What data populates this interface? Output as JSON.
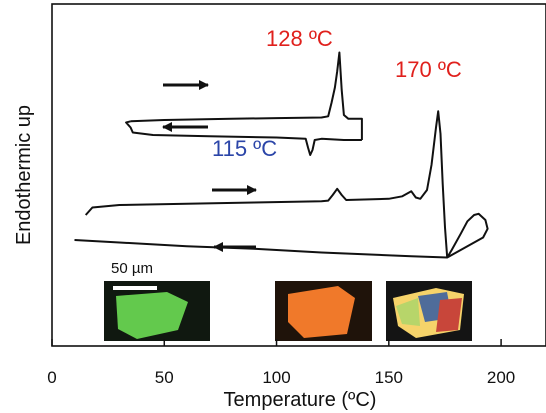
{
  "chart_data": {
    "type": "line",
    "xlabel": "Temperature (ºC)",
    "ylabel": "Endothermic up",
    "xlim": [
      0,
      220
    ],
    "x_ticks": [
      0,
      50,
      100,
      150,
      200
    ],
    "grid": false,
    "legend": "none",
    "series": [
      {
        "role": "upper heating",
        "direction": "right",
        "color": "#111111",
        "points": [
          [
            35,
            95
          ],
          [
            50,
            96
          ],
          [
            80,
            97
          ],
          [
            100,
            97.5
          ],
          [
            120,
            98
          ],
          [
            123,
            99
          ],
          [
            124.5,
            110
          ],
          [
            126,
            122
          ],
          [
            127,
            135
          ],
          [
            128,
            150
          ],
          [
            129,
            120
          ],
          [
            130,
            100
          ],
          [
            132,
            97
          ],
          [
            138,
            97
          ],
          [
            138,
            91
          ],
          [
            138,
            80
          ]
        ]
      },
      {
        "role": "upper cooling",
        "direction": "left",
        "color": "#111111",
        "points": [
          [
            138,
            80
          ],
          [
            130,
            80
          ],
          [
            120,
            81
          ],
          [
            117,
            80
          ],
          [
            116,
            72
          ],
          [
            115,
            68
          ],
          [
            114,
            74
          ],
          [
            113,
            81
          ],
          [
            100,
            82
          ],
          [
            70,
            83
          ],
          [
            45,
            84
          ],
          [
            36,
            86
          ],
          [
            35,
            90
          ],
          [
            33,
            94
          ],
          [
            35,
            95
          ]
        ]
      },
      {
        "role": "lower heating",
        "direction": "right",
        "color": "#111111",
        "points": [
          [
            15,
            20
          ],
          [
            18,
            26
          ],
          [
            30,
            28
          ],
          [
            60,
            29
          ],
          [
            90,
            30
          ],
          [
            120,
            31
          ],
          [
            123,
            31.5
          ],
          [
            125,
            36
          ],
          [
            127,
            41
          ],
          [
            129,
            36
          ],
          [
            131,
            32
          ],
          [
            150,
            33
          ],
          [
            156,
            35
          ],
          [
            160,
            39
          ],
          [
            162,
            34
          ],
          [
            164,
            33
          ],
          [
            167,
            40
          ],
          [
            169,
            60
          ],
          [
            171,
            90
          ],
          [
            172,
            103
          ],
          [
            173,
            85
          ],
          [
            174,
            45
          ],
          [
            175,
            10
          ],
          [
            176,
            -14
          ]
        ]
      },
      {
        "role": "lower cooling",
        "direction": "left",
        "color": "#111111",
        "points": [
          [
            176,
            -14
          ],
          [
            178,
            -8
          ],
          [
            182,
            5
          ],
          [
            185,
            15
          ],
          [
            188,
            20
          ],
          [
            190,
            21
          ],
          [
            193,
            16
          ],
          [
            194,
            9
          ],
          [
            192,
            2
          ],
          [
            185,
            -5
          ],
          [
            178,
            -12
          ],
          [
            176,
            -14
          ],
          [
            160,
            -13
          ],
          [
            120,
            -10
          ],
          [
            90,
            -7
          ],
          [
            60,
            -5
          ],
          [
            30,
            -2
          ],
          [
            10,
            0
          ]
        ]
      }
    ],
    "annotations": [
      {
        "text": "128 ºC",
        "color": "#e0201c"
      },
      {
        "text": "170 ºC",
        "color": "#e0201c"
      },
      {
        "text": "115 ºC",
        "color": "#2b45a8"
      }
    ],
    "inset": {
      "scale_bar_label": "50 µm",
      "micrographs": [
        {
          "name": "green-crystal",
          "base_color": "#2a8a24",
          "crystal_color": "#63c94d"
        },
        {
          "name": "orange-crystal",
          "base_color": "#1f130a",
          "crystal_color": "#f0792a"
        },
        {
          "name": "multicolor-crystal",
          "base_color": "#141414",
          "crystal_color": "#f6d36a"
        }
      ]
    }
  }
}
